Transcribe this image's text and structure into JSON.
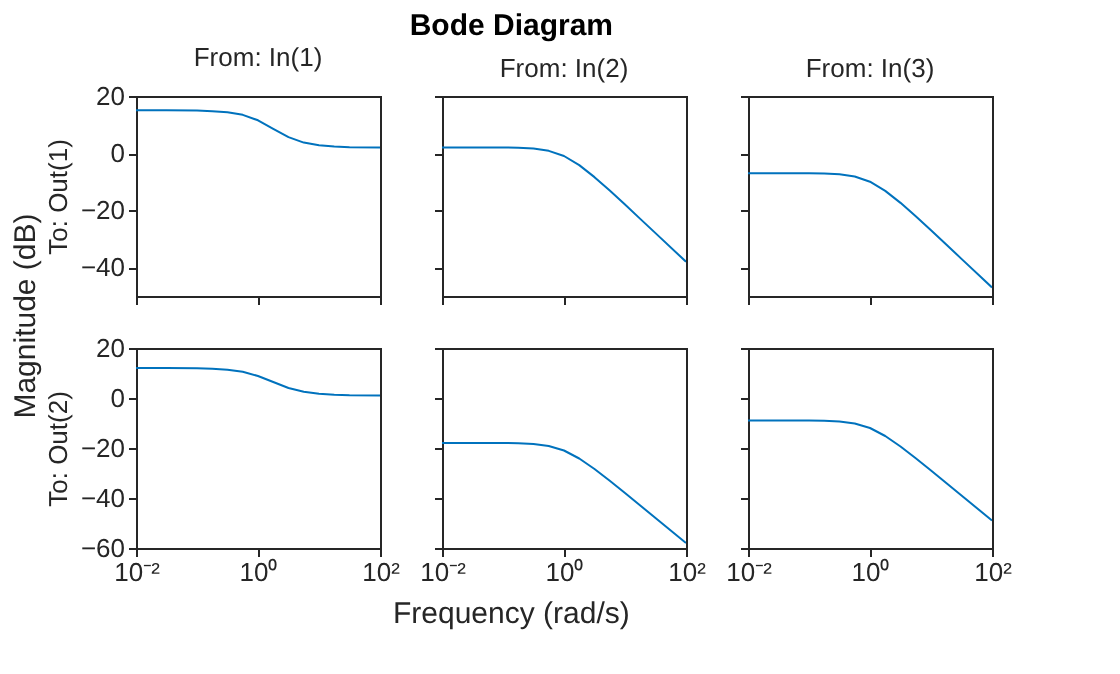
{
  "chart_data": [
    {
      "type": "line",
      "title": "From: In(1)",
      "ylabel": "To: Out(1)",
      "annotations": [
        "Bode Diagram",
        "Magnitude (dB)",
        "Frequency (rad/s)"
      ],
      "log": "x",
      "grid": false,
      "tick_labels": "y",
      "xlim": [
        0.01,
        100
      ],
      "xticks": [
        {
          "value": 0.01,
          "label": null
        },
        {
          "value": 1,
          "label": null
        },
        {
          "value": 100,
          "label": null
        }
      ],
      "ylim": [
        -50,
        20
      ],
      "yticks": [
        -40,
        -20,
        0,
        20
      ],
      "x": [
        0.01,
        0.03162,
        0.1,
        0.1778,
        0.3162,
        0.5623,
        1,
        1.778,
        3.162,
        5.623,
        10,
        17.78,
        31.62,
        100
      ],
      "series": [
        {
          "color": "#0072bd",
          "values": [
            15,
            15,
            14.9,
            14.7,
            14.3,
            13.4,
            11.5,
            8.5,
            5.6,
            3.7,
            2.8,
            2.3,
            2.1,
            2
          ]
        }
      ]
    },
    {
      "type": "line",
      "title": "From: In(2)",
      "log": "x",
      "grid": false,
      "tick_labels": false,
      "xlim": [
        0.01,
        100
      ],
      "xticks": [
        {
          "value": 0.01,
          "label": null
        },
        {
          "value": 1,
          "label": null
        },
        {
          "value": 100,
          "label": null
        }
      ],
      "ylim": [
        -50,
        20
      ],
      "yticks": [
        -40,
        -20,
        0,
        20
      ],
      "x": [
        0.01,
        0.03162,
        0.1,
        0.1778,
        0.3162,
        0.5623,
        1,
        1.778,
        3.162,
        5.623,
        10,
        17.78,
        31.62,
        100
      ],
      "series": [
        {
          "color": "#0072bd",
          "values": [
            2,
            2,
            2,
            1.9,
            1.6,
            0.8,
            -1,
            -4.2,
            -8.4,
            -13.1,
            -18,
            -23,
            -28,
            -38
          ]
        }
      ]
    },
    {
      "type": "line",
      "title": "From: In(3)",
      "log": "x",
      "grid": false,
      "tick_labels": false,
      "xlim": [
        0.01,
        100
      ],
      "xticks": [
        {
          "value": 0.01,
          "label": null
        },
        {
          "value": 1,
          "label": null
        },
        {
          "value": 100,
          "label": null
        }
      ],
      "ylim": [
        -50,
        20
      ],
      "yticks": [
        -40,
        -20,
        0,
        20
      ],
      "x": [
        0.01,
        0.03162,
        0.1,
        0.1778,
        0.3162,
        0.5623,
        1,
        1.778,
        3.162,
        5.623,
        10,
        17.78,
        31.62,
        100
      ],
      "series": [
        {
          "color": "#0072bd",
          "values": [
            -7,
            -7,
            -7,
            -7.1,
            -7.4,
            -8.2,
            -10,
            -13.2,
            -17.4,
            -22.1,
            -27,
            -32,
            -37,
            -47
          ]
        }
      ]
    },
    {
      "type": "line",
      "ylabel": "To: Out(2)",
      "log": "x",
      "grid": false,
      "xlim": [
        0.01,
        100
      ],
      "xticks": [
        {
          "value": 0.01,
          "label": "10⁻²"
        },
        {
          "value": 1,
          "label": "10⁰"
        },
        {
          "value": 100,
          "label": "10²"
        }
      ],
      "ylim": [
        -60,
        20
      ],
      "yticks": [
        -60,
        -40,
        -20,
        0,
        20
      ],
      "x": [
        0.01,
        0.03162,
        0.1,
        0.1778,
        0.3162,
        0.5623,
        1,
        1.778,
        3.162,
        5.623,
        10,
        17.78,
        31.62,
        100
      ],
      "series": [
        {
          "color": "#0072bd",
          "values": [
            12,
            12,
            11.9,
            11.7,
            11.3,
            10.5,
            8.8,
            6.4,
            4,
            2.5,
            1.7,
            1.3,
            1.1,
            1
          ]
        }
      ]
    },
    {
      "type": "line",
      "log": "x",
      "grid": false,
      "tick_labels": "x",
      "xlim": [
        0.01,
        100
      ],
      "xticks": [
        {
          "value": 0.01,
          "label": "10⁻²"
        },
        {
          "value": 1,
          "label": "10⁰"
        },
        {
          "value": 100,
          "label": "10²"
        }
      ],
      "ylim": [
        -60,
        20
      ],
      "yticks": [
        -60,
        -40,
        -20,
        0,
        20
      ],
      "x": [
        0.01,
        0.03162,
        0.1,
        0.1778,
        0.3162,
        0.5623,
        1,
        1.778,
        3.162,
        5.623,
        10,
        17.78,
        31.62,
        100
      ],
      "series": [
        {
          "color": "#0072bd",
          "values": [
            -18,
            -18,
            -18,
            -18.1,
            -18.4,
            -19.2,
            -21,
            -24.2,
            -28.4,
            -33.1,
            -38,
            -43,
            -48,
            -58
          ]
        }
      ]
    },
    {
      "type": "line",
      "log": "x",
      "grid": false,
      "tick_labels": "x",
      "xlim": [
        0.01,
        100
      ],
      "xticks": [
        {
          "value": 0.01,
          "label": "10⁻²"
        },
        {
          "value": 1,
          "label": "10⁰"
        },
        {
          "value": 100,
          "label": "10²"
        }
      ],
      "ylim": [
        -60,
        20
      ],
      "yticks": [
        -60,
        -40,
        -20,
        0,
        20
      ],
      "x": [
        0.01,
        0.03162,
        0.1,
        0.1778,
        0.3162,
        0.5623,
        1,
        1.778,
        3.162,
        5.623,
        10,
        17.78,
        31.62,
        100
      ],
      "series": [
        {
          "color": "#0072bd",
          "values": [
            -9,
            -9,
            -9,
            -9.1,
            -9.4,
            -10.2,
            -12,
            -15.2,
            -19.4,
            -24.1,
            -29,
            -34,
            -39,
            -49
          ]
        }
      ]
    }
  ]
}
